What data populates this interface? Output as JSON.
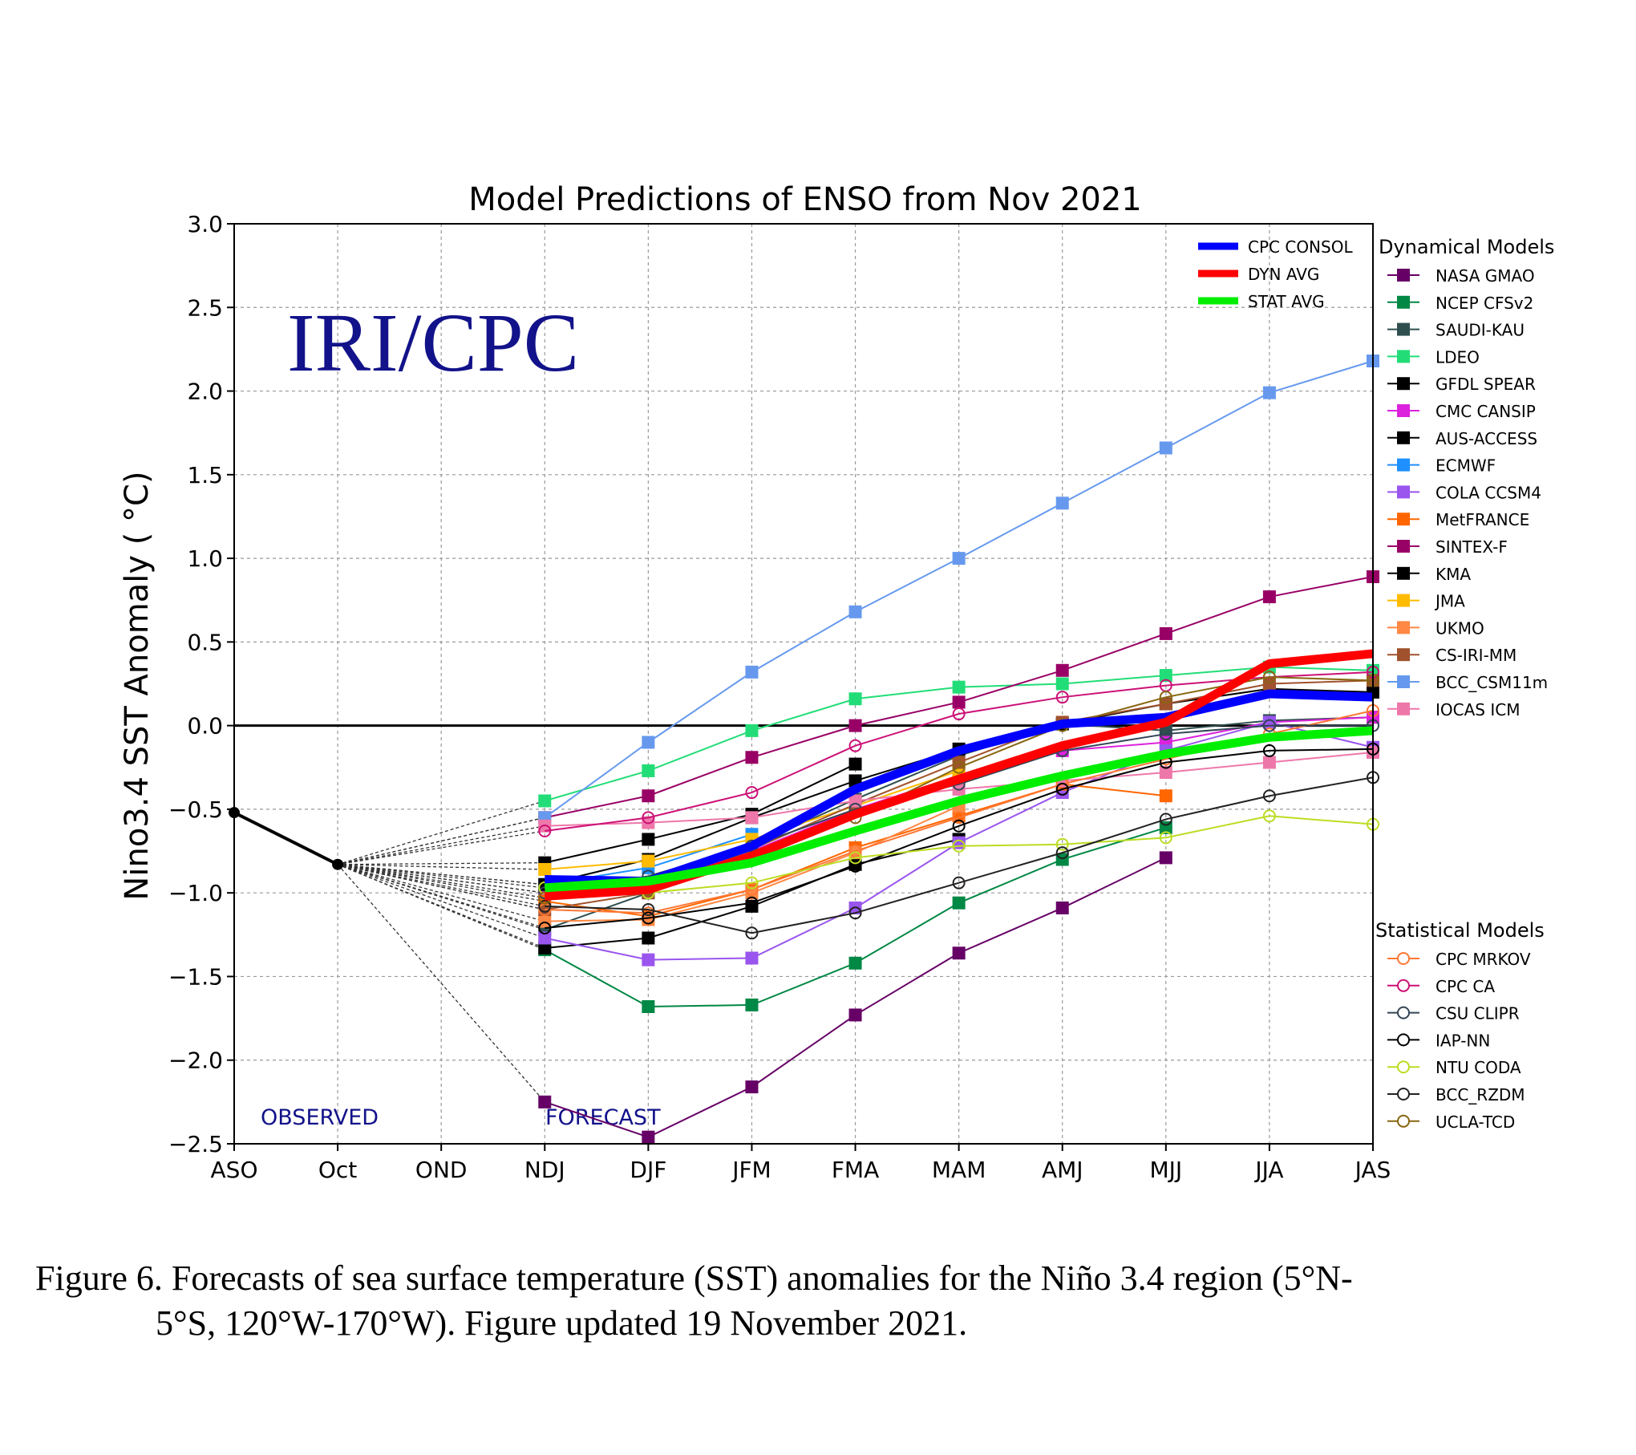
{
  "chart_data": {
    "type": "line",
    "title": "Model Predictions of ENSO from Nov 2021",
    "ylabel": "Nino3.4 SST Anomaly ( °C)",
    "xlabel": "",
    "categories": [
      "ASO",
      "Oct",
      "OND",
      "NDJ",
      "DJF",
      "JFM",
      "FMA",
      "MAM",
      "AMJ",
      "MJJ",
      "JJA",
      "JAS"
    ],
    "ylim": [
      -2.5,
      3.0
    ],
    "yticks": [
      -2.5,
      -2.0,
      -1.5,
      -1.0,
      -0.5,
      0.0,
      0.5,
      1.0,
      1.5,
      2.0,
      2.5,
      3.0
    ],
    "ytick_labels": [
      "−2.5",
      "−2.0",
      "−1.5",
      "−1.0",
      "−0.5",
      "0.0",
      "0.5",
      "1.0",
      "1.5",
      "2.0",
      "2.5",
      "3.0"
    ],
    "grid": true,
    "watermark": "IRI/CPC",
    "observed_label": "OBSERVED",
    "forecast_label": "FORECAST",
    "observed": {
      "x": [
        "ASO",
        "Oct"
      ],
      "values": [
        -0.52,
        -0.83
      ]
    },
    "averages": [
      {
        "name": "CPC CONSOL",
        "color": "#0000ff",
        "values": [
          -0.92,
          -0.93,
          -0.72,
          -0.38,
          -0.15,
          0.01,
          0.05,
          0.19,
          0.17
        ]
      },
      {
        "name": "DYN AVG",
        "color": "#ff0000",
        "values": [
          -1.02,
          -0.98,
          -0.78,
          -0.53,
          -0.32,
          -0.12,
          0.02,
          0.37,
          0.43
        ]
      },
      {
        "name": "STAT AVG",
        "color": "#00ee00",
        "values": [
          -0.97,
          -0.93,
          -0.82,
          -0.63,
          -0.45,
          -0.3,
          -0.17,
          -0.07,
          -0.03
        ]
      }
    ],
    "dynamical_title": "Dynamical Models",
    "dynamical": [
      {
        "name": "NASA GMAO",
        "color": "#660066",
        "values": [
          -2.25,
          -2.46,
          -2.16,
          -1.73,
          -1.36,
          -1.09,
          -0.79,
          null,
          null
        ]
      },
      {
        "name": "NCEP CFSv2",
        "color": "#008844",
        "values": [
          -1.34,
          -1.68,
          -1.67,
          -1.42,
          -1.06,
          -0.8,
          -0.61,
          null,
          null
        ]
      },
      {
        "name": "SAUDI-KAU",
        "color": "#2f4f4f",
        "values": [
          -1.22,
          -1.0,
          -0.72,
          -0.44,
          -0.18,
          0.01,
          -0.03,
          0.03,
          0.05
        ]
      },
      {
        "name": "LDEO",
        "color": "#22dd77",
        "values": [
          -0.45,
          -0.27,
          -0.03,
          0.16,
          0.23,
          0.25,
          0.3,
          0.35,
          0.33
        ]
      },
      {
        "name": "GFDL SPEAR",
        "color": "#000000",
        "values": [
          -0.82,
          -0.68,
          -0.53,
          -0.23,
          null,
          null,
          null,
          null,
          null
        ]
      },
      {
        "name": "CMC CANSIP",
        "color": "#dd22dd",
        "values": [
          -1.0,
          -0.95,
          -0.75,
          -0.5,
          -0.3,
          -0.15,
          -0.1,
          0.02,
          0.05
        ]
      },
      {
        "name": "AUS-ACCESS",
        "color": "#000000",
        "values": [
          -1.33,
          -1.27,
          -1.08,
          -0.83,
          -0.68,
          null,
          null,
          null,
          null
        ]
      },
      {
        "name": "ECMWF",
        "color": "#1e90ff",
        "values": [
          -0.95,
          -0.85,
          -0.65,
          null,
          null,
          null,
          null,
          null,
          null
        ]
      },
      {
        "name": "COLA CCSM4",
        "color": "#9955ee",
        "values": [
          -1.27,
          -1.4,
          -1.39,
          -1.09,
          -0.7,
          -0.4,
          -0.15,
          0.02,
          -0.13
        ]
      },
      {
        "name": "MetFRANCE",
        "color": "#ff6600",
        "values": [
          -1.05,
          -1.14,
          -0.98,
          -0.73,
          -0.54,
          -0.35,
          -0.42,
          null,
          null
        ]
      },
      {
        "name": "SINTEX-F",
        "color": "#990066",
        "values": [
          -0.55,
          -0.42,
          -0.19,
          0.0,
          0.14,
          0.33,
          0.55,
          0.77,
          0.89
        ]
      },
      {
        "name": "KMA",
        "color": "#000000",
        "values": [
          -0.95,
          -0.8,
          -0.55,
          -0.33,
          -0.14,
          0.01,
          0.13,
          0.22,
          0.2
        ]
      },
      {
        "name": "JMA",
        "color": "#ffbb00",
        "values": [
          -0.86,
          -0.81,
          -0.68,
          -0.48,
          -0.27,
          null,
          null,
          null,
          null
        ]
      },
      {
        "name": "UKMO",
        "color": "#ff8844",
        "values": [
          -1.17,
          -1.16,
          -1.0,
          -0.76,
          -0.48,
          null,
          null,
          null,
          null
        ]
      },
      {
        "name": "CS-IRI-MM",
        "color": "#a0522d",
        "values": [
          -1.1,
          -1.0,
          -0.74,
          -0.47,
          -0.22,
          0.02,
          0.13,
          0.25,
          0.27
        ]
      },
      {
        "name": "BCC_CSM11m",
        "color": "#6699ee",
        "values": [
          -0.55,
          -0.1,
          0.32,
          0.68,
          1.0,
          1.33,
          1.66,
          1.99,
          2.18
        ]
      },
      {
        "name": "IOCAS ICM",
        "color": "#ee77aa",
        "values": [
          -0.6,
          -0.58,
          -0.55,
          -0.45,
          -0.38,
          -0.33,
          -0.28,
          -0.22,
          -0.16
        ]
      }
    ],
    "statistical_title": "Statistical Models",
    "statistical": [
      {
        "name": "CPC MRKOV",
        "color": "#ff7733",
        "values": [
          -1.1,
          -1.12,
          -0.98,
          -0.75,
          -0.55,
          -0.35,
          -0.2,
          -0.05,
          0.09
        ]
      },
      {
        "name": "CPC CA",
        "color": "#cc1177",
        "values": [
          -0.63,
          -0.55,
          -0.4,
          -0.12,
          0.07,
          0.17,
          0.24,
          0.29,
          0.32
        ]
      },
      {
        "name": "CSU CLIPR",
        "color": "#334455",
        "values": [
          -1.0,
          -0.9,
          -0.72,
          -0.5,
          -0.35,
          -0.15,
          -0.05,
          0.0,
          0.0
        ]
      },
      {
        "name": "IAP-NN",
        "color": "#000000",
        "values": [
          -1.21,
          -1.15,
          -1.06,
          -0.84,
          -0.6,
          -0.38,
          -0.22,
          -0.15,
          -0.14
        ]
      },
      {
        "name": "NTU CODA",
        "color": "#bbdd22",
        "values": [
          -0.97,
          -1.0,
          -0.94,
          -0.79,
          -0.72,
          -0.71,
          -0.67,
          -0.54,
          -0.59
        ]
      },
      {
        "name": "BCC_RZDM",
        "color": "#222222",
        "values": [
          -1.08,
          -1.1,
          -1.24,
          -1.12,
          -0.94,
          -0.76,
          -0.56,
          -0.42,
          -0.31
        ]
      },
      {
        "name": "UCLA-TCD",
        "color": "#886611",
        "values": [
          -1.03,
          -0.98,
          -0.8,
          -0.55,
          -0.25,
          0.0,
          0.17,
          0.29,
          0.27
        ]
      }
    ]
  },
  "caption": {
    "line1": "Figure 6. Forecasts of sea surface temperature (SST) anomalies for the Niño 3.4 region (5°N-",
    "line2": "5°S, 120°W-170°W). Figure updated 19 November 2021."
  }
}
